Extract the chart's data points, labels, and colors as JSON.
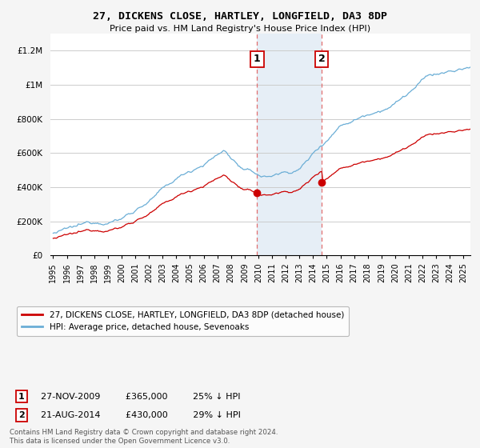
{
  "title": "27, DICKENS CLOSE, HARTLEY, LONGFIELD, DA3 8DP",
  "subtitle": "Price paid vs. HM Land Registry's House Price Index (HPI)",
  "ylabel_ticks": [
    "£0",
    "£200K",
    "£400K",
    "£600K",
    "£800K",
    "£1M",
    "£1.2M"
  ],
  "ytick_values": [
    0,
    200000,
    400000,
    600000,
    800000,
    1000000,
    1200000
  ],
  "ylim": [
    0,
    1300000
  ],
  "xlim_start": 1994.8,
  "xlim_end": 2025.5,
  "sale1": {
    "date_num": 2009.91,
    "price": 365000,
    "label": "1",
    "date_str": "27-NOV-2009",
    "pct": "25% ↓ HPI"
  },
  "sale2": {
    "date_num": 2014.64,
    "price": 430000,
    "label": "2",
    "date_str": "21-AUG-2014",
    "pct": "29% ↓ HPI"
  },
  "vline1_x": 2009.91,
  "vline2_x": 2014.64,
  "shade_start": 2009.91,
  "shade_end": 2014.64,
  "red_line_color": "#cc0000",
  "blue_line_color": "#6baed6",
  "background_color": "#f5f5f5",
  "plot_bg_color": "#ffffff",
  "grid_color": "#cccccc",
  "footnote": "Contains HM Land Registry data © Crown copyright and database right 2024.\nThis data is licensed under the Open Government Licence v3.0.",
  "legend1_label": "27, DICKENS CLOSE, HARTLEY, LONGFIELD, DA3 8DP (detached house)",
  "legend2_label": "HPI: Average price, detached house, Sevenoaks"
}
